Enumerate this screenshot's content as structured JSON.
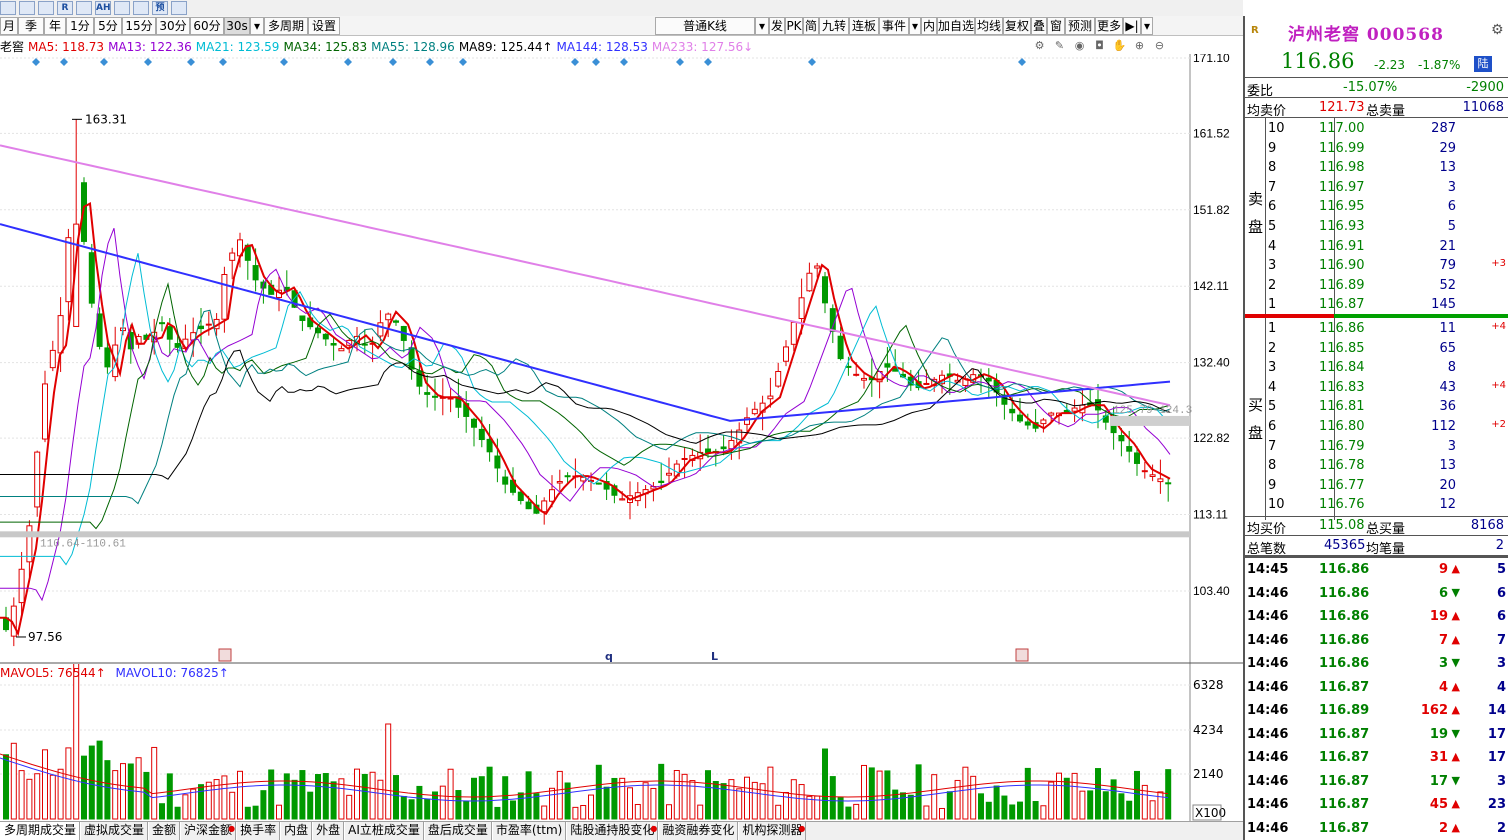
{
  "app": {
    "icon_strip": [
      "chart-icon",
      "bars-icon",
      "trend-icon",
      "R-icon",
      "grid-icon",
      "AH-icon",
      "flag-icon",
      "news-icon",
      "forecast-icon",
      "report-icon"
    ],
    "icon_strip_text": [
      "",
      "",
      "",
      "R",
      "",
      "AH",
      "",
      "",
      "预",
      ""
    ]
  },
  "period_bar": {
    "buttons": [
      "月",
      "季",
      "年",
      "1分",
      "5分",
      "15分",
      "30分",
      "60分",
      "30s",
      "多周期",
      "设置"
    ],
    "selected": "30s",
    "indicator_select": "普通K线",
    "right_buttons": [
      "发",
      "PK",
      "简",
      "九转",
      "连板",
      "事件",
      "内",
      "加自选",
      "均线",
      "复权",
      "叠",
      "窗",
      "预测",
      "更多"
    ]
  },
  "ma_legend": {
    "name": "老窖",
    "items": [
      {
        "label": "MA5: 118.73",
        "color": "#e00000"
      },
      {
        "label": "MA13: 122.36",
        "color": "#9400d3"
      },
      {
        "label": "MA21: 123.59",
        "color": "#00bcd4"
      },
      {
        "label": "MA34: 125.83",
        "color": "#006400"
      },
      {
        "label": "MA55: 128.96",
        "color": "#008080"
      },
      {
        "label": "MA89: 125.44↑",
        "color": "#000000"
      },
      {
        "label": "MA144: 128.53",
        "color": "#3030ff"
      },
      {
        "label": "MA233: 127.56↓",
        "color": "#e080e8"
      }
    ]
  },
  "kline": {
    "y_ticks": [
      "171.10",
      "161.52",
      "151.82",
      "142.11",
      "132.40",
      "122.82",
      "113.11",
      "103.40"
    ],
    "high_label": "163.31",
    "low_label": "97.56",
    "support_label": "110.64-110.61",
    "resistance_label": "125.79-124.3",
    "event_marks": [
      "q",
      "L"
    ],
    "event_mark_icons": [
      "flag-icon",
      "flag-icon"
    ],
    "colors": {
      "up": "#e00000",
      "down": "#009900",
      "bg": "#ffffff",
      "grid": "#e6e6e6"
    }
  },
  "volume": {
    "title": "MAVOL5: 76544↑",
    "title2": "MAVOL10: 76825↑",
    "y_ticks": [
      "6328",
      "4234",
      "2140"
    ],
    "unit": "X100"
  },
  "bottom_tabs": [
    "多周期成交量",
    "虚拟成交量",
    "金额",
    "沪深金额",
    "换手率",
    "内盘",
    "外盘",
    "AI立桩成交量",
    "盘后成交量",
    "市盈率(ttm)",
    "陆股通持股变化",
    "融资融券变化",
    "机构探测器"
  ],
  "bottom_tabs_dot": [
    false,
    false,
    false,
    true,
    false,
    false,
    false,
    false,
    false,
    false,
    true,
    false,
    true
  ],
  "quote": {
    "stock_name": "泸州老窖",
    "stock_code": "000568",
    "price": "116.86",
    "change": "-2.23",
    "change_pct": "-1.87%",
    "badge": "陆",
    "wei_bi_label": "委比",
    "wei_bi": "-15.07%",
    "wei_cha": "-2900",
    "avg_sell_label": "均卖价",
    "avg_sell": "121.73",
    "total_sell_label": "总卖量",
    "total_sell": "11068",
    "sell_side_label": [
      "卖",
      "盘"
    ],
    "buy_side_label": [
      "买",
      "盘"
    ],
    "asks": [
      {
        "level": "10",
        "price": "117.00",
        "vol": "287",
        "delta": ""
      },
      {
        "level": "9",
        "price": "116.99",
        "vol": "29",
        "delta": ""
      },
      {
        "level": "8",
        "price": "116.98",
        "vol": "13",
        "delta": ""
      },
      {
        "level": "7",
        "price": "116.97",
        "vol": "3",
        "delta": ""
      },
      {
        "level": "6",
        "price": "116.95",
        "vol": "6",
        "delta": ""
      },
      {
        "level": "5",
        "price": "116.93",
        "vol": "5",
        "delta": ""
      },
      {
        "level": "4",
        "price": "116.91",
        "vol": "21",
        "delta": ""
      },
      {
        "level": "3",
        "price": "116.90",
        "vol": "79",
        "delta": "+3"
      },
      {
        "level": "2",
        "price": "116.89",
        "vol": "52",
        "delta": ""
      },
      {
        "level": "1",
        "price": "116.87",
        "vol": "145",
        "delta": ""
      }
    ],
    "bids": [
      {
        "level": "1",
        "price": "116.86",
        "vol": "11",
        "delta": "+4"
      },
      {
        "level": "2",
        "price": "116.85",
        "vol": "65",
        "delta": ""
      },
      {
        "level": "3",
        "price": "116.84",
        "vol": "8",
        "delta": ""
      },
      {
        "level": "4",
        "price": "116.83",
        "vol": "43",
        "delta": "+4"
      },
      {
        "level": "5",
        "price": "116.81",
        "vol": "36",
        "delta": ""
      },
      {
        "level": "6",
        "price": "116.80",
        "vol": "112",
        "delta": "+2"
      },
      {
        "level": "7",
        "price": "116.79",
        "vol": "3",
        "delta": ""
      },
      {
        "level": "8",
        "price": "116.78",
        "vol": "13",
        "delta": ""
      },
      {
        "level": "9",
        "price": "116.77",
        "vol": "20",
        "delta": ""
      },
      {
        "level": "10",
        "price": "116.76",
        "vol": "12",
        "delta": ""
      }
    ],
    "avg_buy_label": "均买价",
    "avg_buy": "115.08",
    "total_buy_label": "总买量",
    "total_buy": "8168",
    "total_trades_label": "总笔数",
    "total_trades": "45365",
    "avg_per_trade_label": "均笔量",
    "avg_per_trade": "2",
    "ticks": [
      {
        "time": "14:45",
        "price": "116.86",
        "vol": "9",
        "dir": "up",
        "n": "5"
      },
      {
        "time": "14:46",
        "price": "116.86",
        "vol": "6",
        "dir": "down",
        "n": "6"
      },
      {
        "time": "14:46",
        "price": "116.86",
        "vol": "19",
        "dir": "up",
        "n": "6"
      },
      {
        "time": "14:46",
        "price": "116.86",
        "vol": "7",
        "dir": "up",
        "n": "7"
      },
      {
        "time": "14:46",
        "price": "116.86",
        "vol": "3",
        "dir": "down",
        "n": "3"
      },
      {
        "time": "14:46",
        "price": "116.87",
        "vol": "4",
        "dir": "up",
        "n": "4"
      },
      {
        "time": "14:46",
        "price": "116.89",
        "vol": "162",
        "dir": "up",
        "n": "14"
      },
      {
        "time": "14:46",
        "price": "116.87",
        "vol": "19",
        "dir": "down",
        "n": "17"
      },
      {
        "time": "14:46",
        "price": "116.87",
        "vol": "31",
        "dir": "up",
        "n": "17"
      },
      {
        "time": "14:46",
        "price": "116.87",
        "vol": "17",
        "dir": "down",
        "n": "3"
      },
      {
        "time": "14:46",
        "price": "116.87",
        "vol": "45",
        "dir": "up",
        "n": "23"
      },
      {
        "time": "14:46",
        "price": "116.87",
        "vol": "2",
        "dir": "up",
        "n": "2"
      }
    ]
  }
}
